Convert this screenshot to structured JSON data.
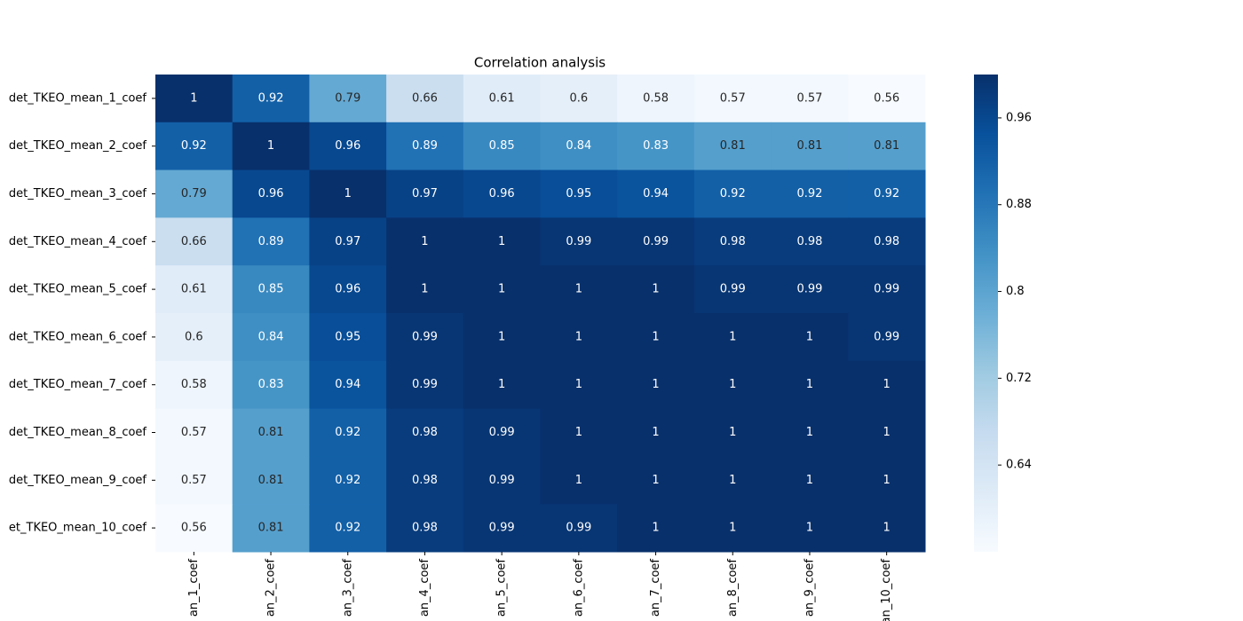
{
  "chart_data": {
    "type": "heatmap",
    "title": "Correlation analysis",
    "rows": [
      "det_TKEO_mean_1_coef",
      "det_TKEO_mean_2_coef",
      "det_TKEO_mean_3_coef",
      "det_TKEO_mean_4_coef",
      "det_TKEO_mean_5_coef",
      "det_TKEO_mean_6_coef",
      "det_TKEO_mean_7_coef",
      "det_TKEO_mean_8_coef",
      "det_TKEO_mean_9_coef",
      "et_TKEO_mean_10_coef"
    ],
    "columns": [
      "an_1_coef",
      "an_2_coef",
      "an_3_coef",
      "an_4_coef",
      "an_5_coef",
      "an_6_coef",
      "an_7_coef",
      "an_8_coef",
      "an_9_coef",
      "an_10_coef"
    ],
    "values": [
      [
        1,
        0.92,
        0.79,
        0.66,
        0.61,
        0.6,
        0.58,
        0.57,
        0.57,
        0.56
      ],
      [
        0.92,
        1,
        0.96,
        0.89,
        0.85,
        0.84,
        0.83,
        0.81,
        0.81,
        0.81
      ],
      [
        0.79,
        0.96,
        1,
        0.97,
        0.96,
        0.95,
        0.94,
        0.92,
        0.92,
        0.92
      ],
      [
        0.66,
        0.89,
        0.97,
        1,
        1,
        0.99,
        0.99,
        0.98,
        0.98,
        0.98
      ],
      [
        0.61,
        0.85,
        0.96,
        1,
        1,
        1,
        1,
        0.99,
        0.99,
        0.99
      ],
      [
        0.6,
        0.84,
        0.95,
        0.99,
        1,
        1,
        1,
        1,
        1,
        0.99
      ],
      [
        0.58,
        0.83,
        0.94,
        0.99,
        1,
        1,
        1,
        1,
        1,
        1
      ],
      [
        0.57,
        0.81,
        0.92,
        0.98,
        0.99,
        1,
        1,
        1,
        1,
        1
      ],
      [
        0.57,
        0.81,
        0.92,
        0.98,
        0.99,
        1,
        1,
        1,
        1,
        1
      ],
      [
        0.56,
        0.81,
        0.92,
        0.98,
        0.99,
        0.99,
        1,
        1,
        1,
        1
      ]
    ],
    "colorscale": [
      "#f7fbff",
      "#deebf7",
      "#c6dbef",
      "#9ecae1",
      "#6baed6",
      "#4292c6",
      "#2171b5",
      "#08519c",
      "#08306b"
    ],
    "zlim": [
      0.56,
      1.0
    ],
    "zticks": [
      0.64,
      0.72,
      0.8,
      0.88,
      0.96
    ]
  }
}
